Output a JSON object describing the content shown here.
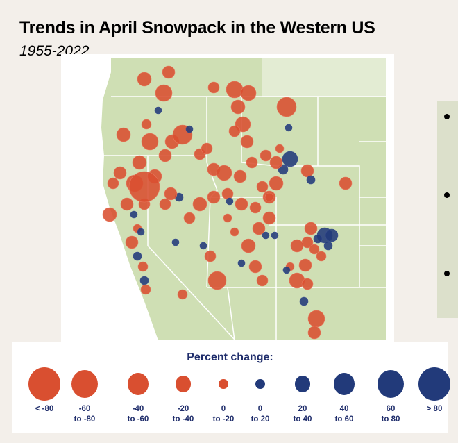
{
  "title": "Trends in April Snowpack in the Western US",
  "subtitle": "1955-2022",
  "colors": {
    "decline": "#d94f30",
    "increase": "#223a7a",
    "land": "#cfdfb4",
    "canada": "#e3ecd3",
    "legend_text": "#1f2d6b"
  },
  "legend": {
    "title": "Percent change:",
    "items": [
      {
        "line1": "< -80",
        "line2": "",
        "color": "decline"
      },
      {
        "line1": "-60",
        "line2": "to -80",
        "color": "decline"
      },
      {
        "line1": "-40",
        "line2": "to -60",
        "color": "decline"
      },
      {
        "line1": "-20",
        "line2": "to -40",
        "color": "decline"
      },
      {
        "line1": "0",
        "line2": "to -20",
        "color": "decline"
      },
      {
        "line1": "0",
        "line2": "to 20",
        "color": "increase"
      },
      {
        "line1": "20",
        "line2": "to 40",
        "color": "increase"
      },
      {
        "line1": "40",
        "line2": "to 60",
        "color": "increase"
      },
      {
        "line1": "60",
        "line2": "to 80",
        "color": "increase"
      },
      {
        "line1": "> 80",
        "line2": "",
        "color": "increase"
      }
    ]
  },
  "side_panel": {
    "bullets": 3
  }
}
